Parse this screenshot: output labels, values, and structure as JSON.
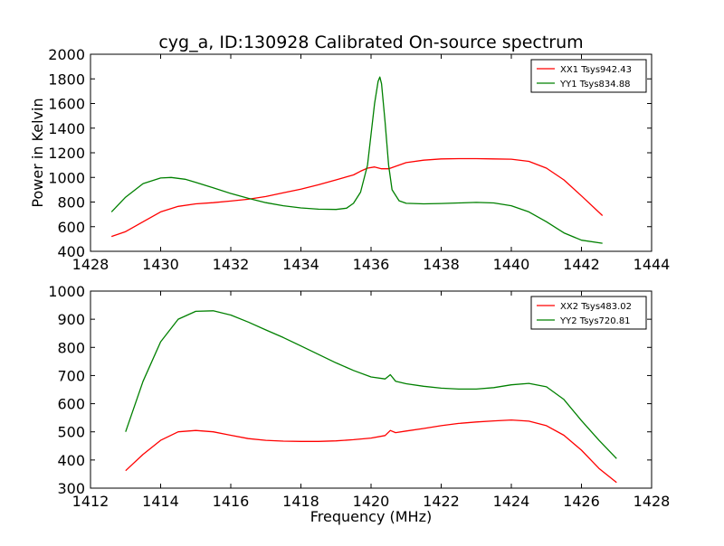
{
  "figure": {
    "title": "cyg_a, ID:130928 Calibrated On-source spectrum"
  },
  "chart_data": [
    {
      "type": "line",
      "title": "cyg_a, ID:130928 Calibrated On-source spectrum",
      "xlabel": "",
      "ylabel": "Power in Kelvin",
      "xlim": [
        1428,
        1444
      ],
      "ylim": [
        400,
        2000
      ],
      "xticks": [
        1428,
        1430,
        1432,
        1434,
        1436,
        1438,
        1440,
        1442,
        1444
      ],
      "yticks": [
        400,
        600,
        800,
        1000,
        1200,
        1400,
        1600,
        1800,
        2000
      ],
      "grid": false,
      "legend_position": "top-right",
      "series": [
        {
          "name": "XX1 Tsys942.43",
          "color": "#ff0000",
          "x": [
            1428.6,
            1429.0,
            1429.5,
            1430.0,
            1430.5,
            1431.0,
            1431.5,
            1432.0,
            1432.5,
            1433.0,
            1433.5,
            1434.0,
            1434.5,
            1435.0,
            1435.5,
            1435.7,
            1435.9,
            1436.1,
            1436.3,
            1436.5,
            1436.7,
            1437.0,
            1437.5,
            1438.0,
            1438.5,
            1439.0,
            1439.5,
            1440.0,
            1440.5,
            1441.0,
            1441.5,
            1442.0,
            1442.6
          ],
          "y": [
            520,
            560,
            640,
            720,
            765,
            785,
            795,
            808,
            823,
            845,
            875,
            905,
            940,
            980,
            1020,
            1050,
            1075,
            1085,
            1070,
            1070,
            1090,
            1120,
            1140,
            1150,
            1152,
            1152,
            1150,
            1148,
            1130,
            1075,
            980,
            850,
            690
          ]
        },
        {
          "name": "YY1 Tsys834.88",
          "color": "#008000",
          "x": [
            1428.6,
            1429.0,
            1429.5,
            1430.0,
            1430.3,
            1430.7,
            1431.0,
            1431.5,
            1432.0,
            1432.5,
            1433.0,
            1433.5,
            1434.0,
            1434.5,
            1435.0,
            1435.3,
            1435.5,
            1435.7,
            1435.9,
            1436.0,
            1436.1,
            1436.2,
            1436.25,
            1436.3,
            1436.4,
            1436.5,
            1436.6,
            1436.8,
            1437.0,
            1437.5,
            1438.0,
            1438.5,
            1439.0,
            1439.5,
            1440.0,
            1440.5,
            1441.0,
            1441.5,
            1442.0,
            1442.6
          ],
          "y": [
            720,
            840,
            950,
            995,
            1000,
            985,
            960,
            915,
            870,
            830,
            795,
            770,
            752,
            742,
            740,
            750,
            790,
            880,
            1100,
            1350,
            1600,
            1780,
            1815,
            1760,
            1450,
            1100,
            900,
            810,
            790,
            785,
            788,
            793,
            797,
            793,
            770,
            720,
            640,
            550,
            490,
            465
          ]
        }
      ]
    },
    {
      "type": "line",
      "title": "",
      "xlabel": "Frequency (MHz)",
      "ylabel": "",
      "xlim": [
        1412,
        1428
      ],
      "ylim": [
        300,
        1000
      ],
      "xticks": [
        1412,
        1414,
        1416,
        1418,
        1420,
        1422,
        1424,
        1426,
        1428
      ],
      "yticks": [
        300,
        400,
        500,
        600,
        700,
        800,
        900,
        1000
      ],
      "grid": false,
      "legend_position": "top-right",
      "series": [
        {
          "name": "XX2 Tsys483.02",
          "color": "#ff0000",
          "x": [
            1413.0,
            1413.5,
            1414.0,
            1414.5,
            1415.0,
            1415.5,
            1416.0,
            1416.5,
            1417.0,
            1417.5,
            1418.0,
            1418.5,
            1419.0,
            1419.5,
            1420.0,
            1420.4,
            1420.55,
            1420.7,
            1421.0,
            1421.5,
            1422.0,
            1422.5,
            1423.0,
            1423.5,
            1424.0,
            1424.5,
            1425.0,
            1425.5,
            1426.0,
            1426.5,
            1427.0
          ],
          "y": [
            362,
            420,
            470,
            500,
            505,
            500,
            488,
            476,
            470,
            467,
            466,
            466,
            468,
            472,
            478,
            487,
            505,
            497,
            503,
            512,
            522,
            530,
            535,
            539,
            542,
            538,
            522,
            488,
            435,
            370,
            320
          ]
        },
        {
          "name": "YY2 Tsys720.81",
          "color": "#008000",
          "x": [
            1413.0,
            1413.5,
            1414.0,
            1414.5,
            1415.0,
            1415.5,
            1416.0,
            1416.5,
            1417.0,
            1417.5,
            1418.0,
            1418.5,
            1419.0,
            1419.5,
            1420.0,
            1420.4,
            1420.55,
            1420.7,
            1421.0,
            1421.5,
            1422.0,
            1422.5,
            1423.0,
            1423.5,
            1424.0,
            1424.5,
            1425.0,
            1425.5,
            1426.0,
            1426.5,
            1427.0
          ],
          "y": [
            500,
            680,
            820,
            900,
            928,
            930,
            915,
            890,
            862,
            835,
            805,
            775,
            745,
            718,
            695,
            688,
            703,
            680,
            671,
            662,
            655,
            652,
            652,
            657,
            667,
            672,
            660,
            615,
            540,
            470,
            405
          ]
        }
      ]
    }
  ]
}
